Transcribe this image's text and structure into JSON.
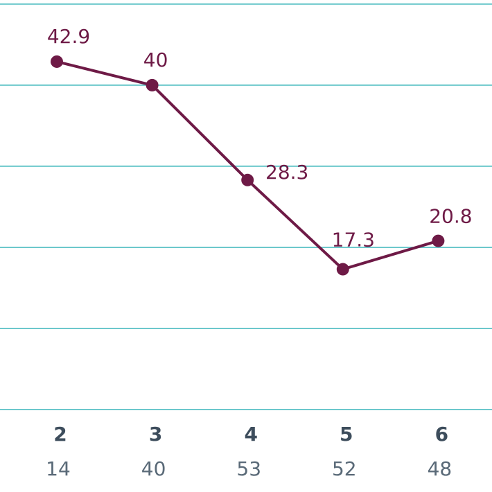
{
  "chart_data": {
    "type": "line",
    "categories": [
      "2",
      "3",
      "4",
      "5",
      "6"
    ],
    "x_sublabels": [
      14,
      40,
      53,
      52,
      48
    ],
    "series": [
      {
        "color": "#6e1a46",
        "values": [
          42.9,
          40,
          28.3,
          17.3,
          20.8
        ]
      }
    ],
    "ylim": [
      0,
      50.5
    ],
    "yticks": [
      0,
      10,
      20,
      30,
      40,
      50
    ],
    "show_ytick_labels": false,
    "grid": true,
    "grid_color": "#6cc8cc"
  }
}
